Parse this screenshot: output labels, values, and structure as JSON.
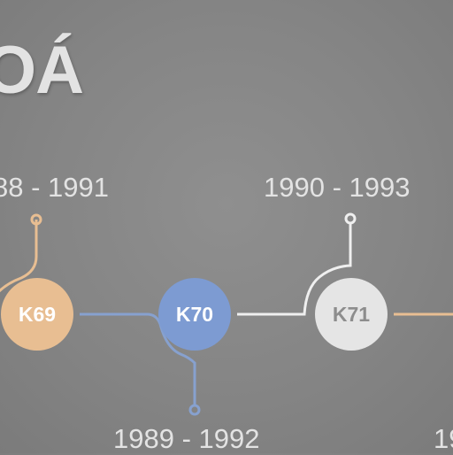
{
  "title": "OÁ",
  "timeline": {
    "nodes": [
      {
        "label": "K69",
        "years": "88 - 1991",
        "color": "#e8be92"
      },
      {
        "label": "K70",
        "years": "1989 - 1992",
        "color": "#7d9bd2"
      },
      {
        "label": "K71",
        "years": "1990 - 1993",
        "color": "#e5e5e5"
      }
    ],
    "next_years_fragment": "19"
  },
  "colors": {
    "background": "#858585",
    "text": "#e3e3e3",
    "connector_light": "#e9e9e9"
  }
}
